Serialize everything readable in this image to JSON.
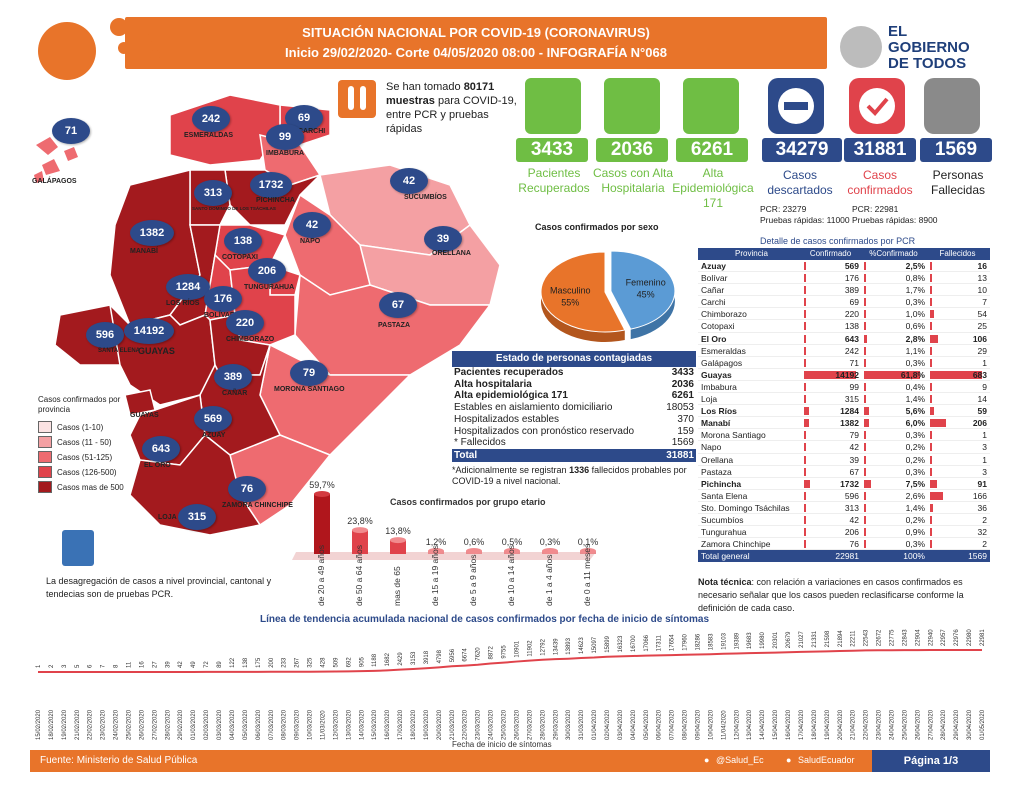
{
  "header": {
    "line1": "SITUACIÓN NACIONAL POR  COVID-19 (CORONAVIRUS)",
    "line2": "Inicio 29/02/2020- Corte 04/05/2020 08:00   - INFOGRAFÍA N°068"
  },
  "gov": {
    "line1": "EL",
    "line2": "GOBIERNO",
    "line3": "DE TODOS"
  },
  "samples": {
    "prefix": "Se han tomado",
    "number": "80171",
    "bold_word": "muestras",
    "rest": "para COVID-19, entre PCR y pruebas rápidas"
  },
  "kpis": [
    {
      "value": "3433",
      "label": "Pacientes Recuperados",
      "color": "#6fbe44"
    },
    {
      "value": "2036",
      "label": "Casos con Alta Hospitalaria",
      "color": "#6fbe44"
    },
    {
      "value": "6261",
      "label": "Alta Epidemiológica 171",
      "color": "#6fbe44"
    },
    {
      "value": "34279",
      "label": "Casos descartados",
      "color": "#2d4a8a"
    },
    {
      "value": "31881",
      "label": "Casos confirmados",
      "color": "#2d4a8a"
    },
    {
      "value": "1569",
      "label": "Personas Fallecidas",
      "color": "#2d4a8a"
    }
  ],
  "discarded_sub": {
    "pcr": "PCR: 23279",
    "rapid": "Pruebas rápidas: 11000"
  },
  "confirmed_sub": {
    "pcr": "PCR: 22981",
    "rapid": "Pruebas rápidas: 8900"
  },
  "map": {
    "provinces": [
      {
        "name": "GALÁPAGOS",
        "value": "71"
      },
      {
        "name": "ESMERALDAS",
        "value": "242"
      },
      {
        "name": "CARCHI",
        "value": "69"
      },
      {
        "name": "IMBABURA",
        "value": "99"
      },
      {
        "name": "SANTO DOMINGO DE LOS TSÁCHILAS",
        "value": "313"
      },
      {
        "name": "PICHINCHA",
        "value": "1732"
      },
      {
        "name": "SUCUMBÍOS",
        "value": "42"
      },
      {
        "name": "NAPO",
        "value": "42"
      },
      {
        "name": "ORELLANA",
        "value": "39"
      },
      {
        "name": "MANABÍ",
        "value": "1382"
      },
      {
        "name": "COTOPAXI",
        "value": "138"
      },
      {
        "name": "TUNGURAHUA",
        "value": "206"
      },
      {
        "name": "LOS RÍOS",
        "value": "1284"
      },
      {
        "name": "BOLÍVAR",
        "value": "176"
      },
      {
        "name": "PASTAZA",
        "value": "67"
      },
      {
        "name": "SANTA ELENA",
        "value": "596"
      },
      {
        "name": "GUAYAS",
        "value": "14192"
      },
      {
        "name": "CHIMBORAZO",
        "value": "220"
      },
      {
        "name": "MORONA SANTIAGO",
        "value": "79"
      },
      {
        "name": "CAÑAR",
        "value": "389"
      },
      {
        "name": "AZUAY",
        "value": "569"
      },
      {
        "name": "EL ORO",
        "value": "643"
      },
      {
        "name": "ZAMORA CHINCHIPE",
        "value": "76"
      },
      {
        "name": "LOJA",
        "value": "315"
      }
    ],
    "legend_title": "Casos confirmados por provincia",
    "legend": [
      {
        "label": "Casos (1-10)",
        "color": "#fbe3e3"
      },
      {
        "label": "Casos (11 - 50)",
        "color": "#f4a0a3"
      },
      {
        "label": "Casos (51-125)",
        "color": "#ee6b70"
      },
      {
        "label": "Casos (126-500)",
        "color": "#e0434b"
      },
      {
        "label": "Casos mas de 500",
        "color": "#a31a1e"
      }
    ],
    "note": "La desagregación de casos a nivel provincial, cantonal y tendecias son de pruebas PCR."
  },
  "sex_chart": {
    "title": "Casos confirmados por sexo",
    "slices": [
      {
        "name": "Masculino",
        "pct": "55%",
        "value": 55,
        "color": "#e8742a"
      },
      {
        "name": "Femenino",
        "pct": "45%",
        "value": 45,
        "color": "#5b9bd5"
      }
    ]
  },
  "state": {
    "title": "Estado de personas contagiadas",
    "rows": [
      {
        "label": "Pacientes recuperados",
        "value": "3433",
        "bold": true
      },
      {
        "label": "Alta hospitalaria",
        "value": "2036",
        "bold": true
      },
      {
        "label": "Alta epidemiológica 171",
        "value": "6261",
        "bold": true
      },
      {
        "label": "Estables en aislamiento domiciliario",
        "value": "18053",
        "bold": false
      },
      {
        "label": "Hospitalizados estables",
        "value": "370",
        "bold": false
      },
      {
        "label": "Hospitalizados con pronóstico reservado",
        "value": "159",
        "bold": false
      },
      {
        "label": "* Fallecidos",
        "value": "1569",
        "bold": false
      }
    ],
    "total_label": "Total",
    "total_value": "31881",
    "note_prefix": "*Adicionalmente se registran",
    "note_bold": "1336",
    "note_rest": "fallecidos probables por COVID-19 a nivel nacional."
  },
  "age_chart": {
    "title": "Casos confirmados por grupo etario",
    "groups": [
      {
        "label": "de 20 a 49 años",
        "pct": "59,7%",
        "value": 59.7
      },
      {
        "label": "de 50 a 64 años",
        "pct": "23,8%",
        "value": 23.8
      },
      {
        "label": "mas de 65",
        "pct": "13,8%",
        "value": 13.8
      },
      {
        "label": "de 15 a 19 años",
        "pct": "1,2%",
        "value": 1.2
      },
      {
        "label": "de 5 a 9 años",
        "pct": "0,6%",
        "value": 0.6
      },
      {
        "label": "de 10 a 14 años",
        "pct": "0,5%",
        "value": 0.5
      },
      {
        "label": "de 1 a 4 años",
        "pct": "0,3%",
        "value": 0.3
      },
      {
        "label": "de 0 a 11 meses",
        "pct": "0,1%",
        "value": 0.1
      }
    ]
  },
  "table": {
    "title": "Detalle de casos confirmados por PCR",
    "headers": [
      "Provincia",
      "Confirmado",
      "%Confirmado",
      "Fallecidos"
    ],
    "rows": [
      {
        "p": "Azuay",
        "c": "569",
        "pct": "2,5%",
        "f": "16",
        "bold": true,
        "cv": 569,
        "pv": 2.5,
        "fv": 16
      },
      {
        "p": "Bolívar",
        "c": "176",
        "pct": "0,8%",
        "f": "13",
        "bold": false,
        "cv": 176,
        "pv": 0.8,
        "fv": 13
      },
      {
        "p": "Cañar",
        "c": "389",
        "pct": "1,7%",
        "f": "10",
        "bold": false,
        "cv": 389,
        "pv": 1.7,
        "fv": 10
      },
      {
        "p": "Carchi",
        "c": "69",
        "pct": "0,3%",
        "f": "7",
        "bold": false,
        "cv": 69,
        "pv": 0.3,
        "fv": 7
      },
      {
        "p": "Chimborazo",
        "c": "220",
        "pct": "1,0%",
        "f": "54",
        "bold": false,
        "cv": 220,
        "pv": 1.0,
        "fv": 54
      },
      {
        "p": "Cotopaxi",
        "c": "138",
        "pct": "0,6%",
        "f": "25",
        "bold": false,
        "cv": 138,
        "pv": 0.6,
        "fv": 25
      },
      {
        "p": "El Oro",
        "c": "643",
        "pct": "2,8%",
        "f": "106",
        "bold": true,
        "cv": 643,
        "pv": 2.8,
        "fv": 106
      },
      {
        "p": "Esmeraldas",
        "c": "242",
        "pct": "1,1%",
        "f": "29",
        "bold": false,
        "cv": 242,
        "pv": 1.1,
        "fv": 29
      },
      {
        "p": "Galápagos",
        "c": "71",
        "pct": "0,3%",
        "f": "1",
        "bold": false,
        "cv": 71,
        "pv": 0.3,
        "fv": 1
      },
      {
        "p": "Guayas",
        "c": "14192",
        "pct": "61,8%",
        "f": "683",
        "bold": true,
        "cv": 14192,
        "pv": 61.8,
        "fv": 683
      },
      {
        "p": "Imbabura",
        "c": "99",
        "pct": "0,4%",
        "f": "9",
        "bold": false,
        "cv": 99,
        "pv": 0.4,
        "fv": 9
      },
      {
        "p": "Loja",
        "c": "315",
        "pct": "1,4%",
        "f": "14",
        "bold": false,
        "cv": 315,
        "pv": 1.4,
        "fv": 14
      },
      {
        "p": "Los Ríos",
        "c": "1284",
        "pct": "5,6%",
        "f": "59",
        "bold": true,
        "cv": 1284,
        "pv": 5.6,
        "fv": 59
      },
      {
        "p": "Manabí",
        "c": "1382",
        "pct": "6,0%",
        "f": "206",
        "bold": true,
        "cv": 1382,
        "pv": 6.0,
        "fv": 206
      },
      {
        "p": "Morona Santiago",
        "c": "79",
        "pct": "0,3%",
        "f": "1",
        "bold": false,
        "cv": 79,
        "pv": 0.3,
        "fv": 1
      },
      {
        "p": "Napo",
        "c": "42",
        "pct": "0,2%",
        "f": "3",
        "bold": false,
        "cv": 42,
        "pv": 0.2,
        "fv": 3
      },
      {
        "p": "Orellana",
        "c": "39",
        "pct": "0,2%",
        "f": "1",
        "bold": false,
        "cv": 39,
        "pv": 0.2,
        "fv": 1
      },
      {
        "p": "Pastaza",
        "c": "67",
        "pct": "0,3%",
        "f": "3",
        "bold": false,
        "cv": 67,
        "pv": 0.3,
        "fv": 3
      },
      {
        "p": "Pichincha",
        "c": "1732",
        "pct": "7,5%",
        "f": "91",
        "bold": true,
        "cv": 1732,
        "pv": 7.5,
        "fv": 91
      },
      {
        "p": "Santa Elena",
        "c": "596",
        "pct": "2,6%",
        "f": "166",
        "bold": false,
        "cv": 596,
        "pv": 2.6,
        "fv": 166
      },
      {
        "p": "Sto. Domingo Tsáchilas",
        "c": "313",
        "pct": "1,4%",
        "f": "36",
        "bold": false,
        "cv": 313,
        "pv": 1.4,
        "fv": 36
      },
      {
        "p": "Sucumbíos",
        "c": "42",
        "pct": "0,2%",
        "f": "2",
        "bold": false,
        "cv": 42,
        "pv": 0.2,
        "fv": 2
      },
      {
        "p": "Tungurahua",
        "c": "206",
        "pct": "0,9%",
        "f": "32",
        "bold": false,
        "cv": 206,
        "pv": 0.9,
        "fv": 32
      },
      {
        "p": "Zamora Chinchipe",
        "c": "76",
        "pct": "0,3%",
        "f": "2",
        "bold": false,
        "cv": 76,
        "pv": 0.3,
        "fv": 2
      }
    ],
    "total": {
      "p": "Total general",
      "c": "22981",
      "pct": "100%",
      "f": "1569"
    }
  },
  "tech_note": {
    "bold": "Nota técnica",
    "rest": ": con relación a variaciones en casos confirmados es necesario señalar que los casos  pueden reclasificarse  conforme la definición de cada caso."
  },
  "trend": {
    "title": "Línea de tendencia acumulada nacional de casos confirmados por fecha de inicio de síntomas",
    "xlabel": "Fecha de inicio de síntomas"
  },
  "chart_data": [
    {
      "type": "pie",
      "title": "Casos confirmados por sexo",
      "categories": [
        "Masculino",
        "Femenino"
      ],
      "values": [
        55,
        45
      ]
    },
    {
      "type": "bar",
      "title": "Casos confirmados por grupo etario",
      "categories": [
        "de 20 a 49 años",
        "de 50 a 64 años",
        "mas de 65",
        "de 15 a 19 años",
        "de 5 a 9 años",
        "de 10 a 14 años",
        "de 1 a 4 años",
        "de 0 a 11 meses"
      ],
      "values": [
        59.7,
        23.8,
        13.8,
        1.2,
        0.6,
        0.5,
        0.3,
        0.1
      ]
    },
    {
      "type": "line",
      "title": "Línea de tendencia acumulada nacional de casos confirmados por fecha de inicio de síntomas",
      "xlabel": "Fecha de inicio de síntomas",
      "x": [
        "15/02/2020",
        "18/02/2020",
        "19/02/2020",
        "21/02/2020",
        "22/02/2020",
        "23/02/2020",
        "24/02/2020",
        "25/02/2020",
        "26/02/2020",
        "27/02/2020",
        "28/02/2020",
        "29/02/2020",
        "01/03/2020",
        "02/03/2020",
        "03/03/2020",
        "04/03/2020",
        "05/03/2020",
        "06/03/2020",
        "07/03/2020",
        "08/03/2020",
        "09/03/2020",
        "10/03/2020",
        "11/03/2020",
        "12/03/2020",
        "13/03/2020",
        "14/03/2020",
        "15/03/2020",
        "16/03/2020",
        "17/03/2020",
        "18/03/2020",
        "19/03/2020",
        "20/03/2020",
        "21/03/2020",
        "22/03/2020",
        "23/03/2020",
        "24/03/2020",
        "25/03/2020",
        "26/03/2020",
        "27/03/2020",
        "28/03/2020",
        "29/03/2020",
        "30/03/2020",
        "31/03/2020",
        "01/04/2020",
        "02/04/2020",
        "03/04/2020",
        "04/04/2020",
        "05/04/2020",
        "06/04/2020",
        "07/04/2020",
        "08/04/2020",
        "09/04/2020",
        "10/04/2020",
        "11/04/2020",
        "12/04/2020",
        "13/04/2020",
        "14/04/2020",
        "15/04/2020",
        "16/04/2020",
        "17/04/2020",
        "18/04/2020",
        "19/04/2020",
        "20/04/2020",
        "21/04/2020",
        "22/04/2020",
        "23/04/2020",
        "24/04/2020",
        "25/04/2020",
        "26/04/2020",
        "27/04/2020",
        "28/04/2020",
        "29/04/2020",
        "30/04/2020",
        "01/05/2020"
      ],
      "values": [
        1,
        2,
        3,
        5,
        6,
        7,
        8,
        11,
        16,
        27,
        39,
        42,
        49,
        72,
        89,
        122,
        138,
        175,
        200,
        233,
        267,
        325,
        428,
        509,
        692,
        905,
        1188,
        1682,
        2429,
        3153,
        3918,
        4798,
        5956,
        6674,
        7620,
        8872,
        9755,
        10901,
        11902,
        12792,
        13439,
        13893,
        14623,
        15097,
        15899,
        16323,
        16700,
        17066,
        17311,
        17654,
        17960,
        18286,
        18583,
        19103,
        19389,
        19683,
        19980,
        20301,
        20679,
        21027,
        21331,
        21598,
        21894,
        22211,
        22543,
        22672,
        22775,
        22843,
        22904,
        22940,
        22957,
        22976,
        22980,
        22981
      ]
    }
  ],
  "footer": {
    "source_label": "Fuente:",
    "source": "Ministerio de Salud Pública",
    "twitter": "@Salud_Ec",
    "facebook": "SaludEcuador",
    "page": "Página 1/3"
  }
}
